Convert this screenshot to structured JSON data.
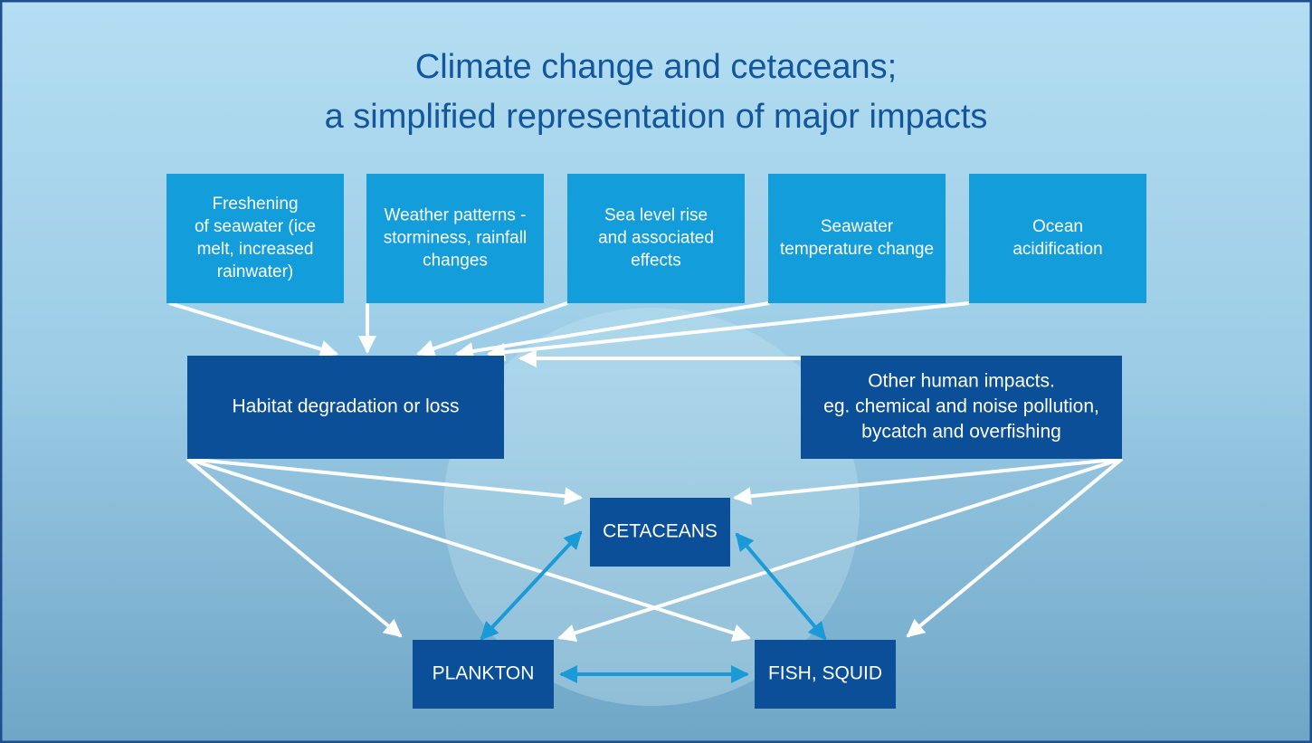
{
  "title": [
    "Climate change and cetaceans;",
    "a simplified representation of major impacts"
  ],
  "drivers": [
    {
      "lines": [
        "Freshening",
        "of seawater (ice",
        "melt, increased",
        "rainwater)"
      ]
    },
    {
      "lines": [
        "Weather patterns -",
        "storminess, rainfall",
        "changes"
      ]
    },
    {
      "lines": [
        "Sea level rise",
        "and associated",
        "effects"
      ]
    },
    {
      "lines": [
        "Seawater",
        "temperature change"
      ]
    },
    {
      "lines": [
        "Ocean",
        "acidification"
      ]
    }
  ],
  "habitat": {
    "lines": [
      "Habitat degradation or loss"
    ]
  },
  "other": {
    "lines": [
      "Other human impacts.",
      "eg. chemical and noise pollution,",
      "bycatch and overfishing"
    ]
  },
  "cetaceans": {
    "lines": [
      "CETACEANS"
    ]
  },
  "plankton": {
    "lines": [
      "PLANKTON"
    ]
  },
  "fish": {
    "lines": [
      "FISH, SQUID"
    ]
  }
}
